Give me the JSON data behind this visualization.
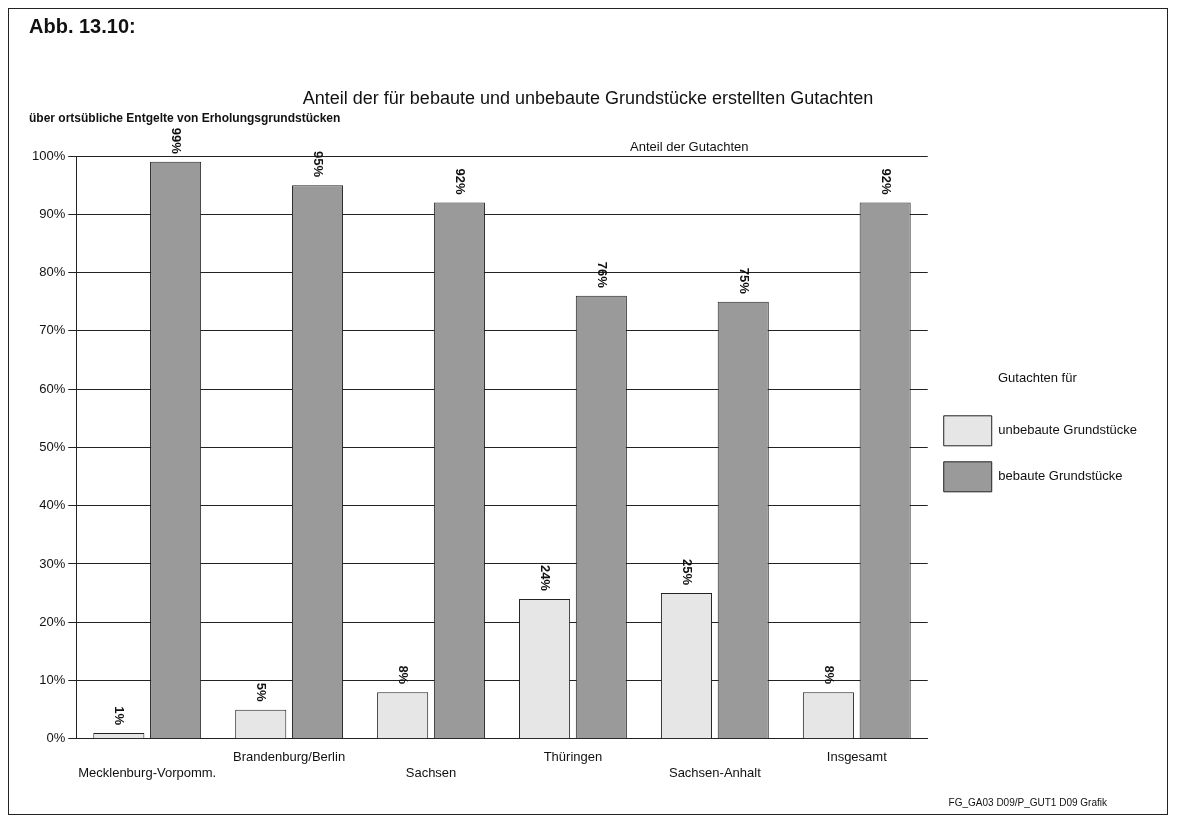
{
  "chart_data": {
    "type": "bar",
    "title": "Anteil der für bebaute und unbebaute Grundstücke erstellten Gutachten",
    "subtitle": "über ortsübliche Entgelte von Erholungsgrundstücken",
    "categories": [
      "Mecklenburg-Vorpomm.",
      "Brandenburg/Berlin",
      "Sachsen",
      "Thüringen",
      "Sachsen-Anhalt",
      "Insgesamt"
    ],
    "series": [
      {
        "name": "unbebaute Grundstücke",
        "color": "#e6e6e6",
        "values": [
          1,
          5,
          8,
          24,
          25,
          8
        ],
        "value_labels": [
          "1%",
          "5%",
          "8%",
          "24%",
          "25%",
          "8%"
        ]
      },
      {
        "name": "bebaute Grundstücke",
        "color": "#9a9a9a",
        "values": [
          99,
          95,
          92,
          76,
          75,
          92
        ],
        "value_labels": [
          "99%",
          "95%",
          "92%",
          "76%",
          "75%",
          "92%"
        ]
      }
    ],
    "ylim": [
      0,
      100
    ],
    "yticks": [
      {
        "value": 0,
        "label": "0%"
      },
      {
        "value": 10,
        "label": "10%"
      },
      {
        "value": 20,
        "label": "20%"
      },
      {
        "value": 30,
        "label": "30%"
      },
      {
        "value": 40,
        "label": "40%"
      },
      {
        "value": 50,
        "label": "50%"
      },
      {
        "value": 60,
        "label": "60%"
      },
      {
        "value": 70,
        "label": "70%"
      },
      {
        "value": 80,
        "label": "80%"
      },
      {
        "value": 90,
        "label": "90%"
      },
      {
        "value": 100,
        "label": "100%"
      }
    ],
    "grid": "y",
    "legend": "right",
    "legend_title": "Gutachten für",
    "annotations": [
      "Abb. 13.10:",
      "Anteil der Gutachten",
      "FG_GA03 D09/P_GUT1 D09 Grafik"
    ]
  }
}
